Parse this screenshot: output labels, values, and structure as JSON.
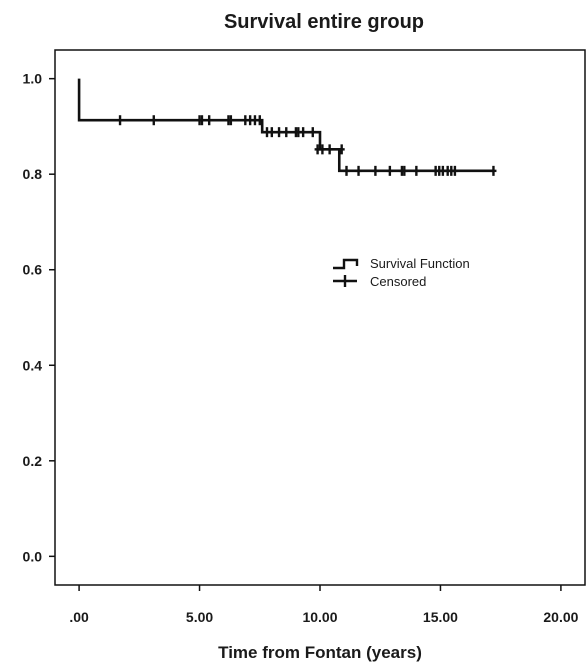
{
  "chart_data": {
    "type": "line",
    "title": "Survival entire group",
    "xlabel": "Time from Fontan (years)",
    "ylabel": "",
    "xlim": [
      -1,
      21
    ],
    "ylim": [
      -0.06,
      1.06
    ],
    "x_ticks": [
      0,
      5,
      10,
      15,
      20
    ],
    "x_tick_labels": [
      ".00",
      "5.00",
      "10.00",
      "15.00",
      "20.00"
    ],
    "y_ticks": [
      0,
      0.2,
      0.4,
      0.6,
      0.8,
      1.0
    ],
    "y_tick_labels": [
      "0.0",
      "0.2",
      "0.4",
      "0.6",
      "0.8",
      "1.0"
    ],
    "grid": false,
    "legend_position": "right-middle",
    "legend": [
      "Survival Function",
      "Censored"
    ],
    "series": [
      {
        "name": "Survival Function",
        "style": "step",
        "color": "#111111",
        "x": [
          0,
          0,
          0,
          0,
          7.5,
          7.6,
          9.8,
          10.0,
          10.8,
          17.2
        ],
        "y": [
          1.0,
          0.97,
          0.94,
          0.913,
          0.913,
          0.888,
          0.888,
          0.852,
          0.807,
          0.807
        ]
      },
      {
        "name": "Censored",
        "style": "marker-plus",
        "color": "#111111",
        "x": [
          1.7,
          3.1,
          5.0,
          5.1,
          5.4,
          6.2,
          6.3,
          6.9,
          7.1,
          7.3,
          7.5,
          7.8,
          8.0,
          8.3,
          8.6,
          9.0,
          9.1,
          9.3,
          9.7,
          9.9,
          10.1,
          10.4,
          10.9,
          11.1,
          11.6,
          12.3,
          12.9,
          13.4,
          13.5,
          14.0,
          14.8,
          14.95,
          15.1,
          15.3,
          15.45,
          15.6,
          17.2
        ],
        "y": [
          0.913,
          0.913,
          0.913,
          0.913,
          0.913,
          0.913,
          0.913,
          0.913,
          0.913,
          0.913,
          0.913,
          0.888,
          0.888,
          0.888,
          0.888,
          0.888,
          0.888,
          0.888,
          0.888,
          0.852,
          0.852,
          0.852,
          0.852,
          0.807,
          0.807,
          0.807,
          0.807,
          0.807,
          0.807,
          0.807,
          0.807,
          0.807,
          0.807,
          0.807,
          0.807,
          0.807,
          0.807
        ]
      }
    ]
  }
}
